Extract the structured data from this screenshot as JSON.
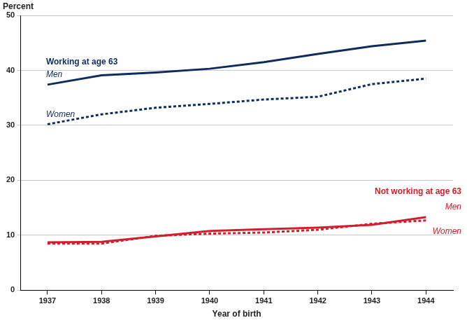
{
  "chart_data": {
    "type": "line",
    "y_label": "Percent",
    "x_label": "Year of birth",
    "categories": [
      "1937",
      "1938",
      "1939",
      "1940",
      "1941",
      "1942",
      "1943",
      "1944"
    ],
    "annotations": [
      "Working at age 63",
      "Not working at age 63"
    ],
    "series": [
      {
        "name": "Men",
        "color": "#0e2d5e",
        "line_style": "solid",
        "values": [
          37.4,
          39.1,
          39.6,
          40.3,
          41.5,
          43.0,
          44.4,
          45.4
        ]
      },
      {
        "name": "Women",
        "color": "#0e2d5e",
        "line_style": "dashed",
        "values": [
          30.2,
          32.0,
          33.2,
          33.9,
          34.7,
          35.2,
          37.5,
          38.5
        ]
      },
      {
        "name": "Men",
        "color": "#d0202e",
        "line_style": "solid",
        "values": [
          8.7,
          8.8,
          9.8,
          10.8,
          11.1,
          11.4,
          11.9,
          13.3
        ]
      },
      {
        "name": "Women",
        "color": "#d0202e",
        "line_style": "dashed",
        "values": [
          8.5,
          8.5,
          9.9,
          10.3,
          10.5,
          11.0,
          12.1,
          12.7
        ]
      }
    ],
    "ylim": [
      0,
      50
    ],
    "yticks": [
      0,
      10,
      20,
      30,
      40,
      50
    ],
    "grid": true
  }
}
